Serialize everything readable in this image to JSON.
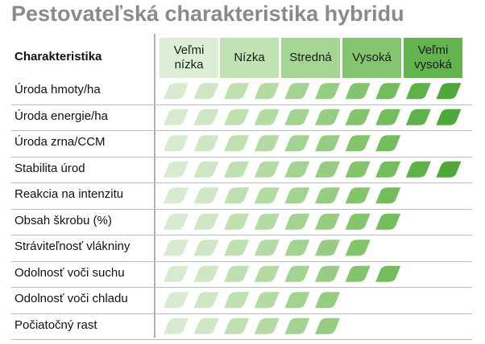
{
  "title": "Pestovateľská charakteristika hybridu",
  "header_label": "Charakteristika",
  "levels": [
    {
      "label": "Veľmi\nnízka",
      "color": "#dcefd4"
    },
    {
      "label": "Nízka",
      "color": "#c1e3b4"
    },
    {
      "label": "Stredná",
      "color": "#a5d592"
    },
    {
      "label": "Vysoká",
      "color": "#86c56f"
    },
    {
      "label": "Veľmi\nvysoká",
      "color": "#63b34e"
    }
  ],
  "leaf_colors": [
    "#d8ebd0",
    "#cfe7c5",
    "#bfe0b1",
    "#b3dba3",
    "#a3d391",
    "#96cd82",
    "#84c46d",
    "#74bd5c",
    "#5fb24a",
    "#4ea83b"
  ],
  "rows": [
    {
      "label": "Úroda hmoty/ha",
      "score": 10
    },
    {
      "label": "Úroda energie/ha",
      "score": 10
    },
    {
      "label": "Úroda zrna/CCM",
      "score": 8
    },
    {
      "label": "Stabilita úrod",
      "score": 10
    },
    {
      "label": "Reakcia na intenzitu",
      "score": 8
    },
    {
      "label": "Obsah škrobu (%)",
      "score": 8
    },
    {
      "label": "Stráviteľnosť vlákniny",
      "score": 7
    },
    {
      "label": "Odolnosť voči suchu",
      "score": 8
    },
    {
      "label": "Odolnosť voči chladu",
      "score": 6
    },
    {
      "label": "Počiatočný rast",
      "score": 6
    }
  ]
}
